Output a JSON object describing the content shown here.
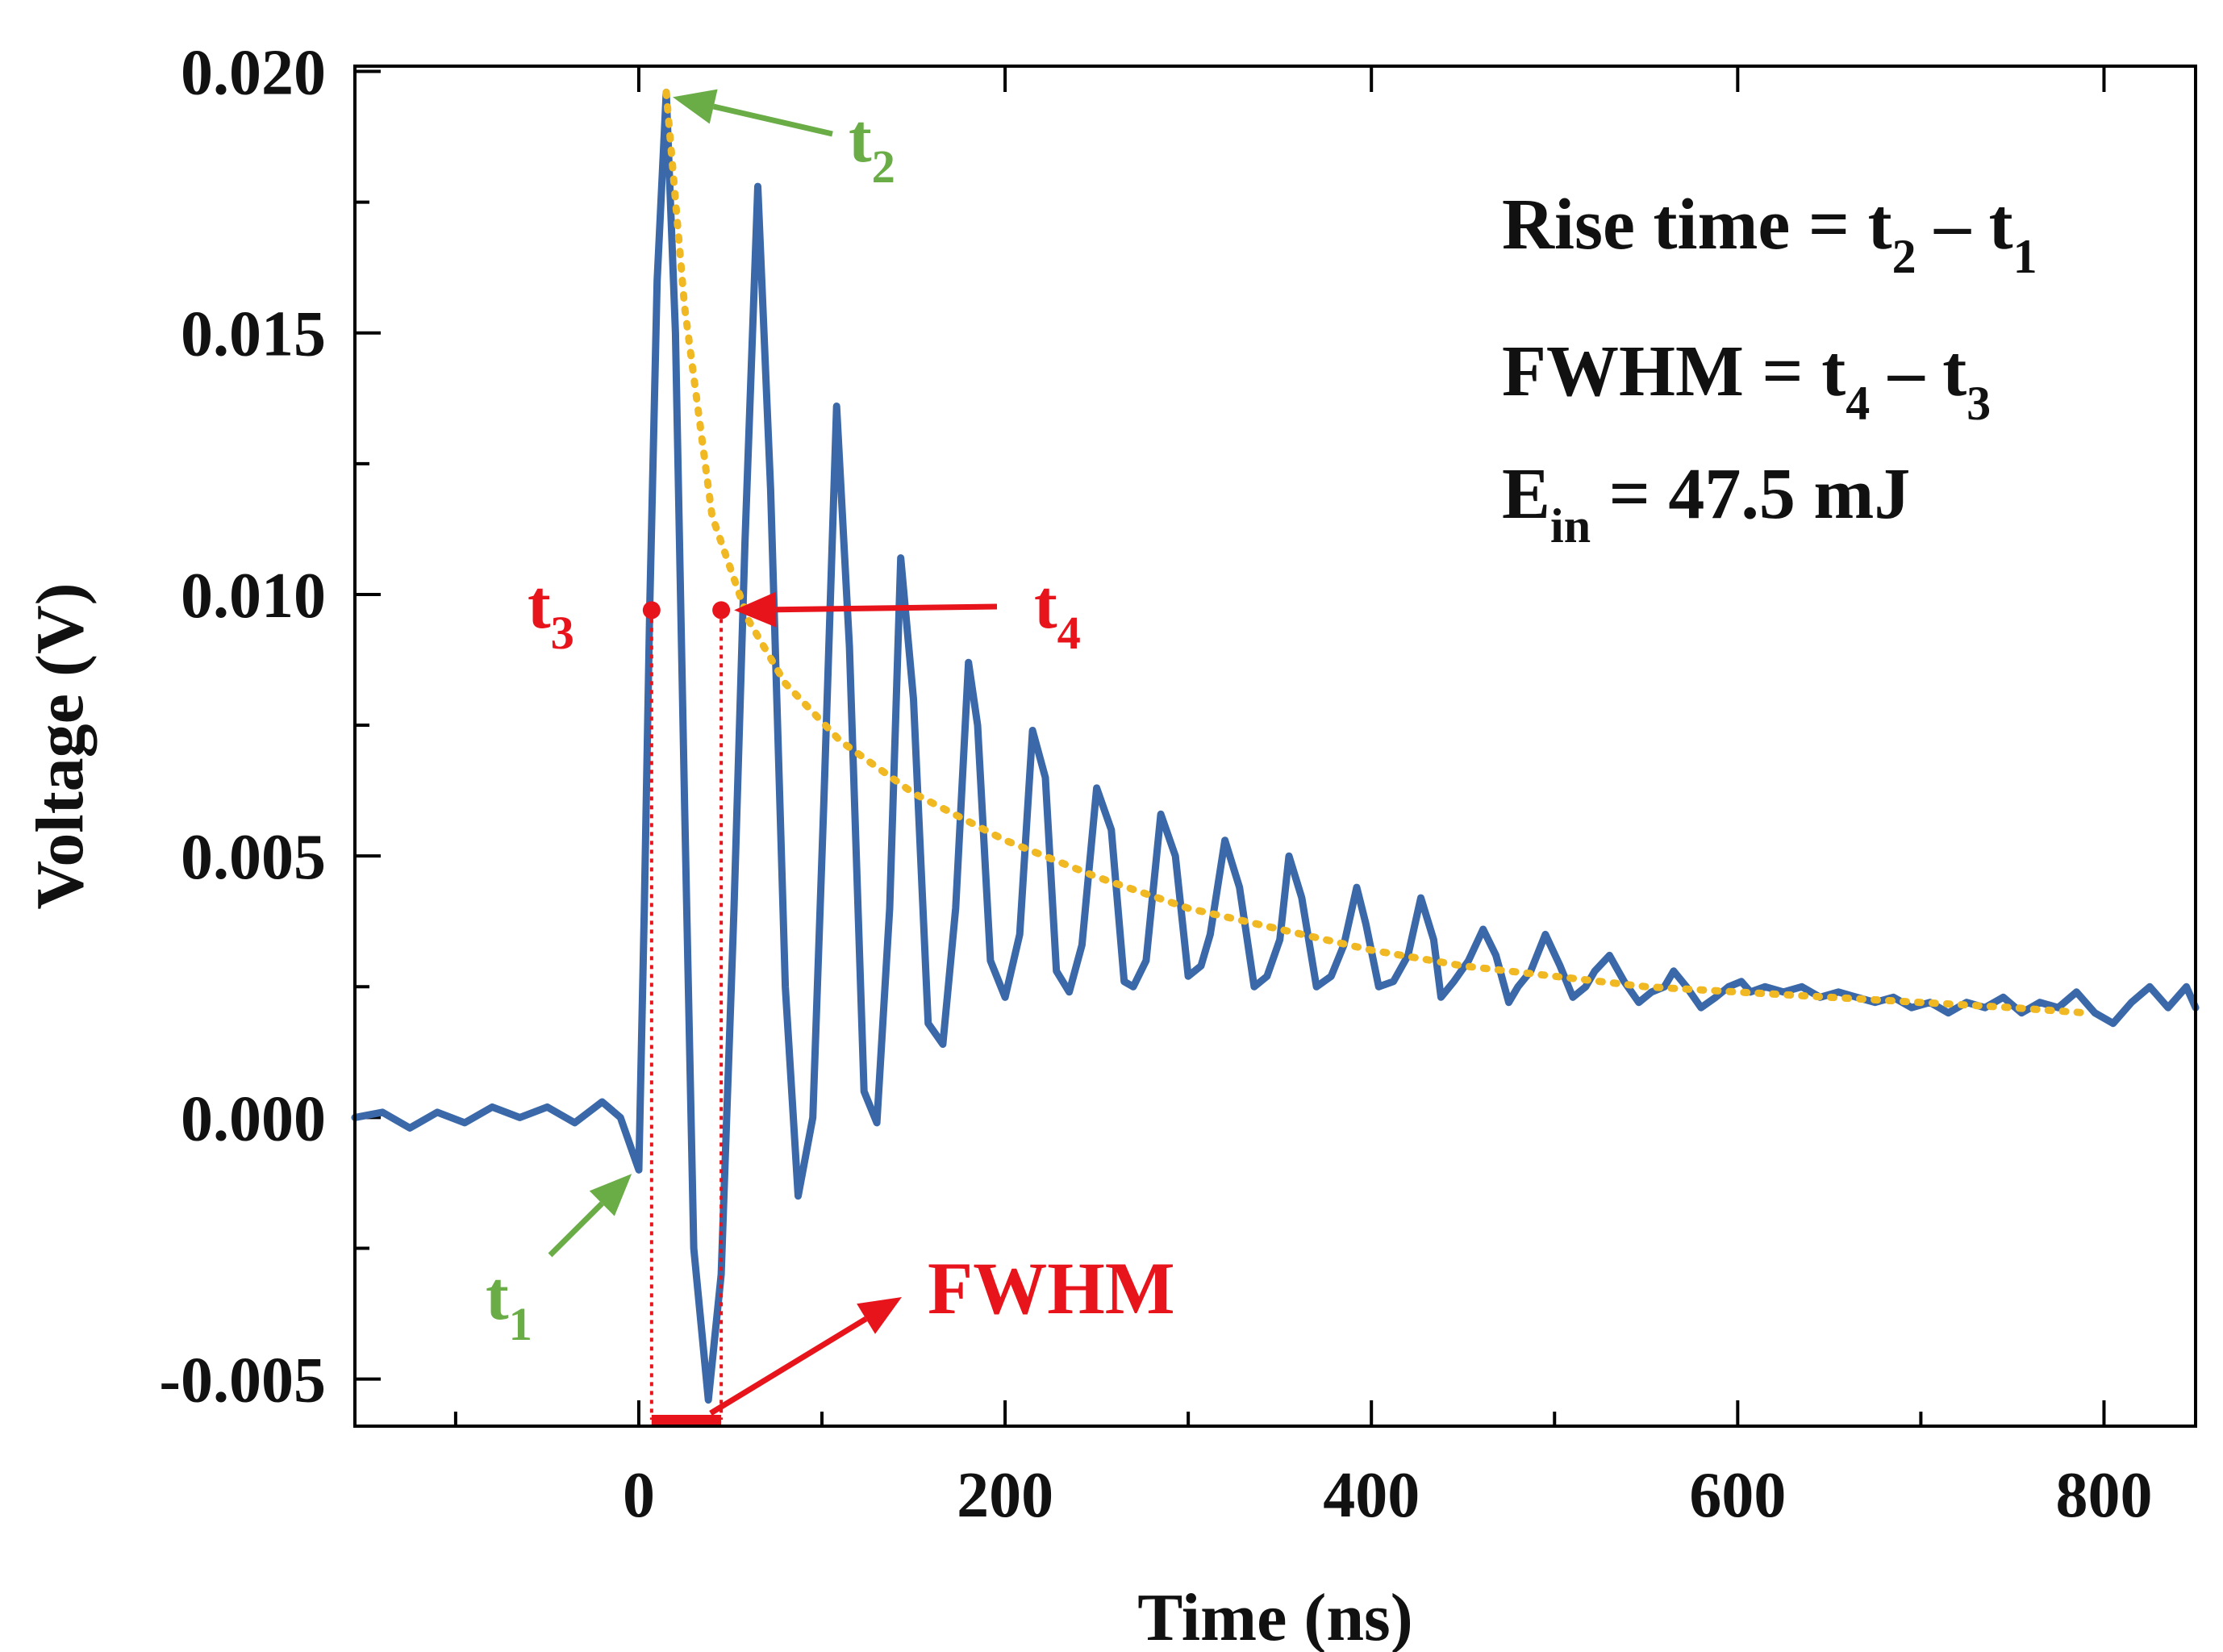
{
  "chart_data": {
    "type": "line",
    "title": "",
    "xlabel": "Time (ns)",
    "ylabel": "Voltage (V)",
    "xlim": [
      -155,
      850
    ],
    "ylim": [
      -0.0059,
      0.0201
    ],
    "xticks": [
      0,
      200,
      400,
      600,
      800
    ],
    "xtick_labels": [
      "0",
      "200",
      "400",
      "600",
      "800"
    ],
    "yticks": [
      -0.005,
      0.0,
      0.005,
      0.01,
      0.015,
      0.02
    ],
    "ytick_labels": [
      "-0.005",
      "0.000",
      "0.005",
      "0.010",
      "0.015",
      "0.020"
    ],
    "grid": false,
    "series": [
      {
        "name": "signal",
        "color": "#3a68a8",
        "style": "solid",
        "x": [
          -155,
          -140,
          -125,
          -110,
          -95,
          -80,
          -65,
          -50,
          -35,
          -20,
          -10,
          -3,
          0,
          3,
          6,
          10,
          15,
          20,
          25,
          30,
          38,
          45,
          52,
          58,
          65,
          72,
          80,
          87,
          95,
          101,
          108,
          115,
          123,
          130,
          137,
          143,
          150,
          158,
          166,
          173,
          180,
          185,
          192,
          200,
          208,
          215,
          222,
          228,
          235,
          242,
          250,
          258,
          265,
          270,
          277,
          285,
          293,
          300,
          307,
          312,
          320,
          328,
          336,
          343,
          350,
          355,
          362,
          370,
          378,
          385,
          392,
          397,
          404,
          412,
          420,
          427,
          434,
          438,
          445,
          453,
          461,
          468,
          475,
          480,
          487,
          495,
          503,
          510,
          517,
          522,
          530,
          538,
          546,
          553,
          560,
          565,
          572,
          580,
          588,
          595,
          602,
          607,
          615,
          625,
          635,
          645,
          655,
          665,
          675,
          685,
          695,
          705,
          715,
          725,
          735,
          745,
          755,
          765,
          775,
          785,
          795,
          805,
          815,
          825,
          835,
          845,
          850
        ],
        "y": [
          0.0,
          0.0001,
          -0.0002,
          0.0001,
          -0.0001,
          0.0002,
          0.0,
          0.0002,
          -0.0001,
          0.0003,
          0.0,
          -0.0007,
          -0.001,
          0.004,
          0.0098,
          0.016,
          0.0196,
          0.015,
          0.006,
          -0.0025,
          -0.0054,
          -0.003,
          0.004,
          0.011,
          0.0178,
          0.012,
          0.0025,
          -0.0015,
          0.0,
          0.006,
          0.0136,
          0.009,
          0.0005,
          -0.0001,
          0.004,
          0.0107,
          0.008,
          0.0018,
          0.0014,
          0.004,
          0.0087,
          0.0075,
          0.003,
          0.0023,
          0.0035,
          0.0074,
          0.0065,
          0.0028,
          0.0024,
          0.0033,
          0.0063,
          0.0055,
          0.0026,
          0.0025,
          0.003,
          0.0058,
          0.005,
          0.0027,
          0.0029,
          0.0035,
          0.0053,
          0.0044,
          0.0025,
          0.0027,
          0.0034,
          0.005,
          0.0042,
          0.0025,
          0.0027,
          0.0033,
          0.0044,
          0.0037,
          0.0025,
          0.0026,
          0.0031,
          0.0042,
          0.0034,
          0.0023,
          0.0026,
          0.003,
          0.0036,
          0.0031,
          0.0022,
          0.0025,
          0.0028,
          0.0035,
          0.0029,
          0.0023,
          0.0025,
          0.0028,
          0.0031,
          0.0026,
          0.0022,
          0.0024,
          0.0025,
          0.0028,
          0.0025,
          0.0021,
          0.0023,
          0.0025,
          0.0026,
          0.0024,
          0.0025,
          0.0024,
          0.0025,
          0.0023,
          0.0024,
          0.0023,
          0.0022,
          0.0023,
          0.0021,
          0.0022,
          0.002,
          0.0022,
          0.0021,
          0.0023,
          0.002,
          0.0022,
          0.0021,
          0.0024,
          0.002,
          0.0018,
          0.0022,
          0.0025,
          0.0021,
          0.0025,
          0.0021
        ]
      },
      {
        "name": "envelope-fit",
        "color": "#f0b823",
        "style": "dotted",
        "x": [
          15,
          25,
          40,
          60,
          80,
          110,
          150,
          200,
          250,
          300,
          350,
          400,
          450,
          500,
          550,
          600,
          650,
          700,
          750,
          790
        ],
        "y": [
          0.0196,
          0.0155,
          0.0115,
          0.0095,
          0.0083,
          0.0072,
          0.0062,
          0.0053,
          0.0046,
          0.004,
          0.0036,
          0.0032,
          0.0029,
          0.0027,
          0.0025,
          0.0024,
          0.0023,
          0.0022,
          0.0021,
          0.002
        ]
      }
    ],
    "markers": {
      "t3": {
        "x": 7,
        "y": 0.0097,
        "label": "t",
        "sub": "3",
        "color": "#e8141b"
      },
      "t4": {
        "x": 45,
        "y": 0.0097,
        "label": "t",
        "sub": "4",
        "color": "#e8141b"
      },
      "t1": {
        "x": -3,
        "y": -0.0008,
        "label": "t",
        "sub": "1",
        "color": "#6aac46"
      },
      "t2": {
        "x": 15,
        "y": 0.0196,
        "label": "t",
        "sub": "2",
        "color": "#6aac46"
      }
    },
    "fwhm": {
      "x_start": 7,
      "x_end": 45,
      "label": "FWHM",
      "color": "#e8141b"
    },
    "annotations": [
      {
        "text": "Rise time = t",
        "sub1": "2",
        "mid": " – t",
        "sub2": "1"
      },
      {
        "text": "FWHM = t",
        "sub1": "4",
        "mid": " – t",
        "sub2": "3"
      },
      {
        "text": "E",
        "sub1": "in",
        "mid": " = 47.5 mJ",
        "sub2": ""
      }
    ]
  }
}
